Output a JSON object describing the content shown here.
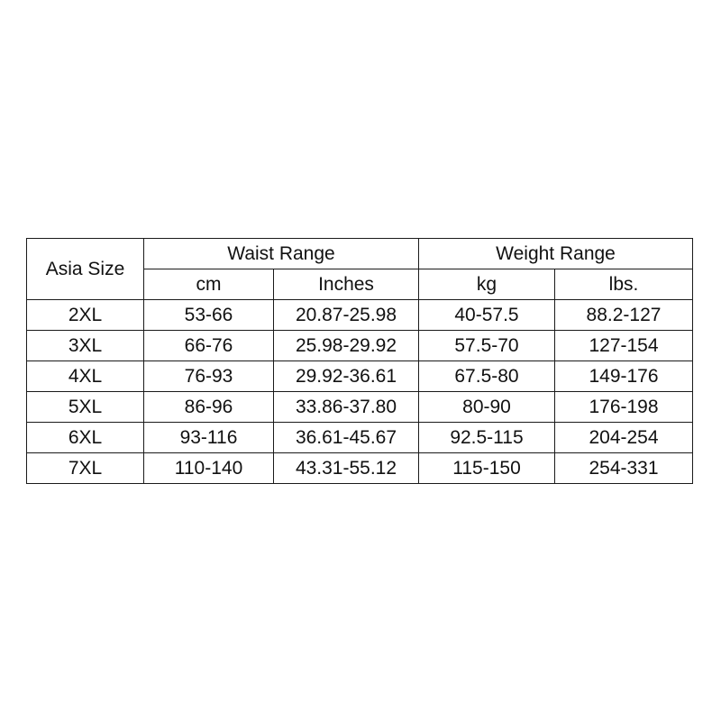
{
  "table": {
    "size_header": "Asia Size",
    "group_headers": {
      "waist": "Waist Range",
      "weight": "Weight Range"
    },
    "unit_headers": {
      "cm": "cm",
      "inches": "Inches",
      "kg": "kg",
      "lbs": "lbs."
    },
    "rows": [
      {
        "size": "2XL",
        "cm": "53-66",
        "inches": "20.87-25.98",
        "kg": "40-57.5",
        "lbs": "88.2-127"
      },
      {
        "size": "3XL",
        "cm": "66-76",
        "inches": "25.98-29.92",
        "kg": "57.5-70",
        "lbs": "127-154"
      },
      {
        "size": "4XL",
        "cm": "76-93",
        "inches": "29.92-36.61",
        "kg": "67.5-80",
        "lbs": "149-176"
      },
      {
        "size": "5XL",
        "cm": "86-96",
        "inches": "33.86-37.80",
        "kg": "80-90",
        "lbs": "176-198"
      },
      {
        "size": "6XL",
        "cm": "93-116",
        "inches": "36.61-45.67",
        "kg": "92.5-115",
        "lbs": "204-254"
      },
      {
        "size": "7XL",
        "cm": "110-140",
        "inches": "43.31-55.12",
        "kg": "115-150",
        "lbs": "254-331"
      }
    ]
  }
}
